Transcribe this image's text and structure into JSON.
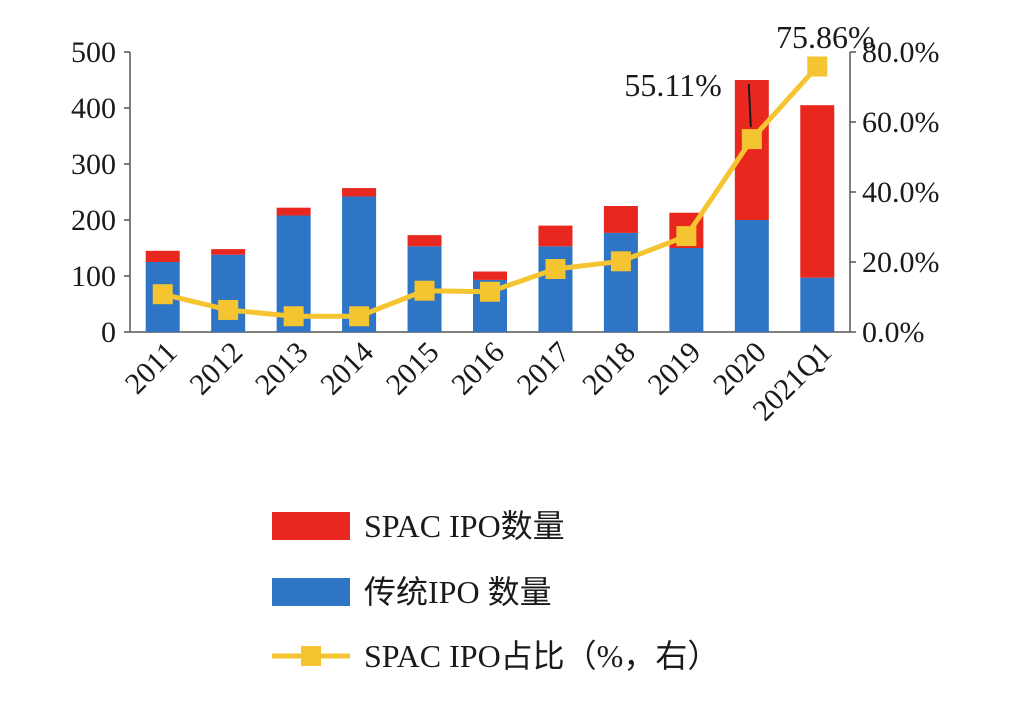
{
  "chart_data": {
    "type": "bar",
    "stacked": true,
    "categories": [
      "2011",
      "2012",
      "2013",
      "2014",
      "2015",
      "2016",
      "2017",
      "2018",
      "2019",
      "2020",
      "2021Q1"
    ],
    "series": [
      {
        "name": "传统IPO 数量",
        "kind": "bar",
        "axis": "left",
        "color": "#2E75C6",
        "values": [
          125,
          138,
          208,
          242,
          153,
          93,
          153,
          177,
          150,
          200,
          97
        ]
      },
      {
        "name": "SPAC IPO数量",
        "kind": "bar",
        "axis": "left",
        "color": "#E8271E",
        "values": [
          20,
          10,
          14,
          15,
          20,
          15,
          37,
          48,
          63,
          250,
          308
        ]
      },
      {
        "name": "SPAC IPO占比（%，右）",
        "kind": "line",
        "axis": "right",
        "color": "#F5C431",
        "values": [
          10.8,
          6.3,
          4.5,
          4.5,
          11.8,
          11.5,
          18.0,
          20.2,
          27.4,
          55.11,
          75.86
        ]
      }
    ],
    "left_axis": {
      "ylim": [
        0,
        500
      ],
      "ticks": [
        "0",
        "100",
        "200",
        "300",
        "400",
        "500"
      ]
    },
    "right_axis": {
      "ylim": [
        0,
        80
      ],
      "ticks": [
        "0.0%",
        "20.0%",
        "40.0%",
        "60.0%",
        "80.0%"
      ]
    },
    "annotations": [
      {
        "category": "2020",
        "text": "55.11%"
      },
      {
        "category": "2021Q1",
        "text": "75.86%"
      }
    ],
    "legend": {
      "placement": "bottom",
      "items": [
        {
          "label": "SPAC IPO数量",
          "color": "#E8271E",
          "marker": "bar"
        },
        {
          "label": "传统IPO 数量",
          "color": "#2E75C6",
          "marker": "bar"
        },
        {
          "label": "SPAC IPO占比（%，右）",
          "color": "#F5C431",
          "marker": "line-square"
        }
      ]
    },
    "title": "",
    "xlabel": "",
    "ylabel": ""
  }
}
